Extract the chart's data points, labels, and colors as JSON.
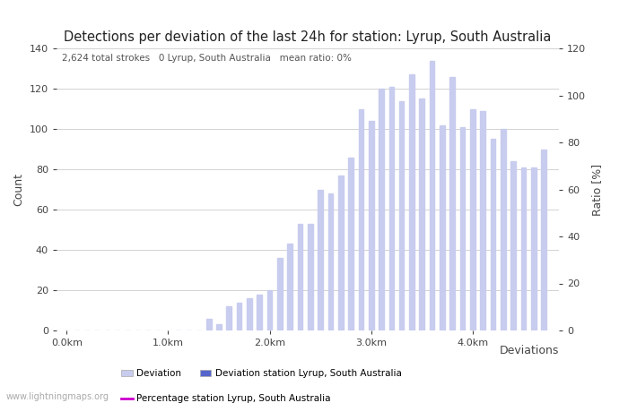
{
  "title": "Detections per deviation of the last 24h for station: Lyrup, South Australia",
  "subtitle_parts": [
    "2,624 total strokes",
    "0 Lyrup, South Australia",
    "mean ratio: 0%"
  ],
  "xlabel": "Deviations",
  "ylabel_left": "Count",
  "ylabel_right": "Ratio [%]",
  "ylim_left": [
    0,
    140
  ],
  "ylim_right": [
    0,
    120
  ],
  "yticks_left": [
    0,
    20,
    40,
    60,
    80,
    100,
    120,
    140
  ],
  "yticks_right": [
    0,
    20,
    40,
    60,
    80,
    100,
    120
  ],
  "bar_positions": [
    0.0,
    0.1,
    0.2,
    0.3,
    0.4,
    0.5,
    0.6,
    0.7,
    0.8,
    0.9,
    1.0,
    1.1,
    1.2,
    1.3,
    1.4,
    1.5,
    1.6,
    1.7,
    1.8,
    1.9,
    2.0,
    2.1,
    2.2,
    2.3,
    2.4,
    2.5,
    2.6,
    2.7,
    2.8,
    2.9,
    3.0,
    3.1,
    3.2,
    3.3,
    3.4,
    3.5,
    3.6,
    3.7,
    3.8,
    3.9,
    4.0,
    4.1,
    4.2,
    4.3,
    4.4,
    4.5,
    4.6,
    4.7
  ],
  "bar_values": [
    0,
    0,
    0,
    0,
    0,
    0,
    0,
    0,
    0,
    0,
    0,
    0,
    0,
    0,
    6,
    3,
    12,
    14,
    16,
    18,
    20,
    36,
    43,
    53,
    53,
    70,
    68,
    77,
    86,
    110,
    104,
    120,
    121,
    114,
    127,
    115,
    134,
    102,
    126,
    101,
    110,
    109,
    95,
    100,
    84,
    81,
    81,
    90
  ],
  "bar_color": "#c8ccee",
  "bar_color_station": "#5566cc",
  "bar_width": 0.05,
  "xticks": [
    0.0,
    1.0,
    2.0,
    3.0,
    4.0
  ],
  "xtick_labels": [
    "0.0km",
    "1.0km",
    "2.0km",
    "3.0km",
    "4.0km"
  ],
  "xlim": [
    -0.1,
    4.85
  ],
  "grid_color": "#cccccc",
  "background_color": "#ffffff",
  "watermark": "www.lightningmaps.org",
  "legend_deviation_label": "Deviation",
  "legend_station_label": "Deviation station Lyrup, South Australia",
  "legend_percentage_label": "Percentage station Lyrup, South Australia",
  "percentage_line_color": "#cc00cc",
  "title_fontsize": 10.5,
  "axis_label_fontsize": 9,
  "tick_fontsize": 8,
  "legend_fontsize": 7.5
}
